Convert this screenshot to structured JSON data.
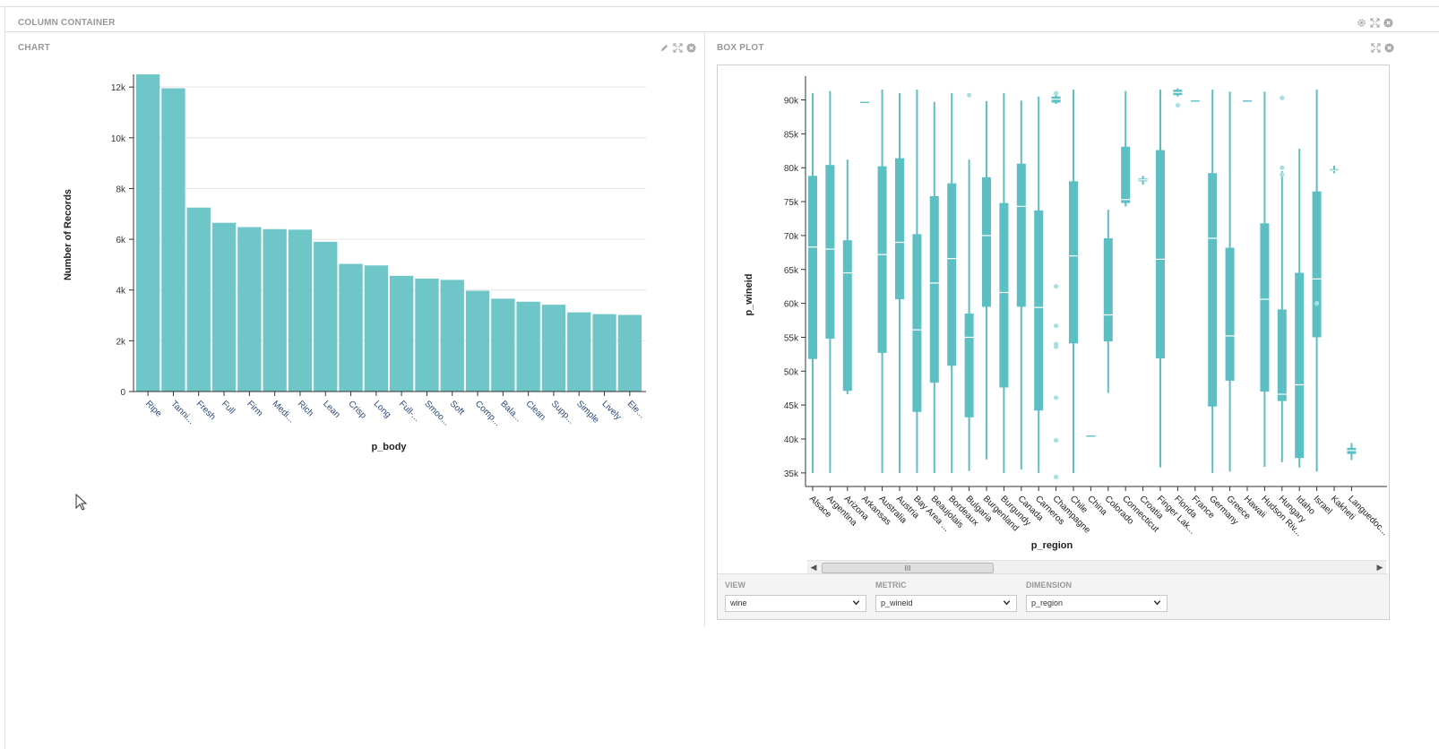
{
  "container": {
    "title": "COLUMN CONTAINER"
  },
  "chart_panel": {
    "title": "CHART"
  },
  "boxplot_panel": {
    "title": "BOX PLOT"
  },
  "colors": {
    "bar": "#6ec6c9",
    "box": "#5bbfc4",
    "outlier": "#a8dfe1"
  },
  "form": {
    "view": {
      "label": "VIEW",
      "value": "wine"
    },
    "metric": {
      "label": "METRIC",
      "value": "p_wineid"
    },
    "dimension": {
      "label": "DIMENSION",
      "value": "p_region"
    }
  },
  "scrollbar": {
    "thumb_grip": "III"
  },
  "chart_data": [
    {
      "type": "bar",
      "xlabel": "p_body",
      "ylabel": "Number of Records",
      "ylim": [
        0,
        12500
      ],
      "yticks": [
        0,
        2000,
        4000,
        6000,
        8000,
        10000,
        12000
      ],
      "ytick_labels": [
        "0",
        "2k",
        "4k",
        "6k",
        "8k",
        "10k",
        "12k"
      ],
      "grid": true,
      "categories": [
        "Ripe",
        "Tanni...",
        "Fresh",
        "Full",
        "Firm",
        "Medi...",
        "Rich",
        "Lean",
        "Crisp",
        "Long",
        "Full-...",
        "Smoo...",
        "Soft",
        "Comp...",
        "Bala...",
        "Clean",
        "Supp...",
        "Simple",
        "Lively",
        "Ele..."
      ],
      "values": [
        12500,
        11950,
        7250,
        6650,
        6480,
        6400,
        6380,
        5900,
        5030,
        4970,
        4560,
        4450,
        4400,
        3970,
        3660,
        3540,
        3420,
        3120,
        3050,
        3020
      ]
    },
    {
      "type": "box",
      "xlabel": "p_region",
      "ylabel": "p_wineid",
      "ylim": [
        33000,
        93500
      ],
      "yticks": [
        35000,
        40000,
        45000,
        50000,
        55000,
        60000,
        65000,
        70000,
        75000,
        80000,
        85000,
        90000
      ],
      "ytick_labels": [
        "35k",
        "40k",
        "45k",
        "50k",
        "55k",
        "60k",
        "65k",
        "70k",
        "75k",
        "80k",
        "85k",
        "90k"
      ],
      "categories": [
        "Alsace",
        "Argentina",
        "Arizona",
        "Arkansas",
        "Australia",
        "Austria",
        "Bay Area ...",
        "Beaujolais",
        "Bordeaux",
        "Bulgaria",
        "Burgenland",
        "Burgundy",
        "Canada",
        "Carneros",
        "Champagne",
        "Chile",
        "China",
        "Colorado",
        "Connecticut",
        "Croatia",
        "Finger Lak...",
        "Florida",
        "France",
        "Germany",
        "Greece",
        "Hawaii",
        "Hudson Riv...",
        "Hungary",
        "Idaho",
        "Israel",
        "Kakheti",
        "Languedoc..."
      ],
      "boxes": [
        {
          "min": 35000,
          "q1": 51800,
          "median": 68300,
          "q3": 78800,
          "max": 91000,
          "outliers": []
        },
        {
          "min": 35000,
          "q1": 54800,
          "median": 68000,
          "q3": 80400,
          "max": 91300,
          "outliers": []
        },
        {
          "min": 46600,
          "q1": 47100,
          "median": 64500,
          "q3": 69300,
          "max": 81200,
          "outliers": []
        },
        {
          "min": 89800,
          "q1": 89800,
          "median": 89800,
          "q3": 89800,
          "max": 89800,
          "outliers": []
        },
        {
          "min": 35000,
          "q1": 52700,
          "median": 67200,
          "q3": 80200,
          "max": 91500,
          "outliers": []
        },
        {
          "min": 35000,
          "q1": 60600,
          "median": 69000,
          "q3": 81400,
          "max": 91000,
          "outliers": []
        },
        {
          "min": 35000,
          "q1": 44000,
          "median": 56100,
          "q3": 70200,
          "max": 91500,
          "outliers": []
        },
        {
          "min": 35000,
          "q1": 48300,
          "median": 63000,
          "q3": 75800,
          "max": 89700,
          "outliers": []
        },
        {
          "min": 35000,
          "q1": 50800,
          "median": 66600,
          "q3": 77700,
          "max": 91000,
          "outliers": []
        },
        {
          "min": 35300,
          "q1": 43200,
          "median": 55000,
          "q3": 58500,
          "max": 81200,
          "outliers": [
            90700
          ]
        },
        {
          "min": 37000,
          "q1": 59500,
          "median": 70000,
          "q3": 78600,
          "max": 89800,
          "outliers": []
        },
        {
          "min": 35000,
          "q1": 47600,
          "median": 61600,
          "q3": 74800,
          "max": 91000,
          "outliers": []
        },
        {
          "min": 35500,
          "q1": 59500,
          "median": 74300,
          "q3": 80600,
          "max": 89900,
          "outliers": []
        },
        {
          "min": 35000,
          "q1": 44200,
          "median": 59400,
          "q3": 73700,
          "max": 90500,
          "outliers": []
        },
        {
          "min": 89400,
          "q1": 89600,
          "median": 90100,
          "q3": 90500,
          "max": 90700,
          "outliers": [
            34400,
            39800,
            46100,
            53600,
            54000,
            56700,
            62500,
            91000
          ]
        },
        {
          "min": 35000,
          "q1": 54100,
          "median": 67000,
          "q3": 78000,
          "max": 91500,
          "outliers": []
        },
        {
          "min": 40600,
          "q1": 40600,
          "median": 40600,
          "q3": 40600,
          "max": 40600,
          "outliers": []
        },
        {
          "min": 46800,
          "q1": 54400,
          "median": 58300,
          "q3": 69600,
          "max": 73800,
          "outliers": []
        },
        {
          "min": 74300,
          "q1": 74800,
          "median": 75300,
          "q3": 83100,
          "max": 91300,
          "outliers": []
        },
        {
          "min": 77500,
          "q1": 78000,
          "median": 78200,
          "q3": 78400,
          "max": 78800,
          "outliers": []
        },
        {
          "min": 35800,
          "q1": 51900,
          "median": 66500,
          "q3": 82600,
          "max": 91500,
          "outliers": []
        },
        {
          "min": 90500,
          "q1": 90700,
          "median": 91100,
          "q3": 91500,
          "max": 91700,
          "outliers": [
            89200
          ]
        },
        {
          "min": 90000,
          "q1": 90000,
          "median": 90000,
          "q3": 90000,
          "max": 90000,
          "outliers": []
        },
        {
          "min": 35000,
          "q1": 44800,
          "median": 69600,
          "q3": 79200,
          "max": 91500,
          "outliers": []
        },
        {
          "min": 35200,
          "q1": 48600,
          "median": 55200,
          "q3": 68200,
          "max": 91200,
          "outliers": []
        },
        {
          "min": 90000,
          "q1": 90000,
          "median": 90000,
          "q3": 90000,
          "max": 90000,
          "outliers": []
        },
        {
          "min": 35900,
          "q1": 47000,
          "median": 60600,
          "q3": 71800,
          "max": 91200,
          "outliers": []
        },
        {
          "min": 36600,
          "q1": 45600,
          "median": 46600,
          "q3": 59100,
          "max": 79500,
          "outliers": [
            79000,
            80000,
            90300
          ]
        },
        {
          "min": 35800,
          "q1": 37200,
          "median": 48000,
          "q3": 64500,
          "max": 82800,
          "outliers": []
        },
        {
          "min": 35200,
          "q1": 55000,
          "median": 63600,
          "q3": 76500,
          "max": 91500,
          "outliers": [
            60000
          ]
        },
        {
          "min": 79200,
          "q1": 79500,
          "median": 79600,
          "q3": 79800,
          "max": 80300,
          "outliers": []
        },
        {
          "min": 36900,
          "q1": 37800,
          "median": 38300,
          "q3": 38700,
          "max": 39400,
          "outliers": []
        }
      ]
    }
  ]
}
